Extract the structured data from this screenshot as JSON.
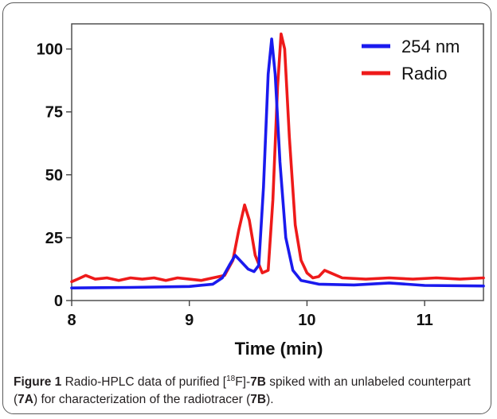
{
  "figure": {
    "label": "Figure 1",
    "caption_p1": " Radio-HPLC data of purified [",
    "caption_sup": "18",
    "caption_p2": "F]-",
    "caption_b1": "7B",
    "caption_p3": " spiked with an unlabeled counterpart (",
    "caption_b2": "7A",
    "caption_p4": ") for characterization of the radiotracer (",
    "caption_b3": "7B",
    "caption_p5": ")."
  },
  "chart_data": {
    "type": "line",
    "xlabel": "Time (min)",
    "ylabel": "",
    "xlim": [
      8,
      11.5
    ],
    "ylim": [
      0,
      110
    ],
    "x_ticks": [
      8,
      9,
      10,
      11
    ],
    "y_ticks": [
      0,
      25,
      50,
      75,
      100
    ],
    "grid": false,
    "legend": "top-right",
    "series": [
      {
        "name": "254 nm",
        "color": "#1a1aee",
        "points": [
          [
            8.0,
            5
          ],
          [
            8.5,
            5.2
          ],
          [
            9.0,
            5.6
          ],
          [
            9.2,
            6.5
          ],
          [
            9.28,
            9
          ],
          [
            9.34,
            14
          ],
          [
            9.39,
            18
          ],
          [
            9.44,
            15.5
          ],
          [
            9.5,
            12.5
          ],
          [
            9.55,
            11.5
          ],
          [
            9.59,
            14
          ],
          [
            9.63,
            45
          ],
          [
            9.67,
            90
          ],
          [
            9.7,
            104
          ],
          [
            9.73,
            90
          ],
          [
            9.77,
            55
          ],
          [
            9.82,
            25
          ],
          [
            9.88,
            12
          ],
          [
            9.95,
            8
          ],
          [
            10.1,
            6.5
          ],
          [
            10.4,
            6.2
          ],
          [
            10.7,
            7
          ],
          [
            11.0,
            6
          ],
          [
            11.5,
            5.8
          ]
        ]
      },
      {
        "name": "Radio",
        "color": "#ee1a1a",
        "points": [
          [
            8.0,
            7.5
          ],
          [
            8.05,
            8.5
          ],
          [
            8.12,
            10
          ],
          [
            8.2,
            8.5
          ],
          [
            8.3,
            9
          ],
          [
            8.4,
            8
          ],
          [
            8.5,
            9
          ],
          [
            8.6,
            8.5
          ],
          [
            8.7,
            9
          ],
          [
            8.8,
            8
          ],
          [
            8.9,
            9
          ],
          [
            9.0,
            8.5
          ],
          [
            9.1,
            8
          ],
          [
            9.2,
            9
          ],
          [
            9.3,
            10
          ],
          [
            9.37,
            16
          ],
          [
            9.42,
            28
          ],
          [
            9.47,
            38
          ],
          [
            9.51,
            32
          ],
          [
            9.56,
            18
          ],
          [
            9.62,
            11
          ],
          [
            9.67,
            12
          ],
          [
            9.71,
            40
          ],
          [
            9.75,
            85
          ],
          [
            9.78,
            106
          ],
          [
            9.81,
            100
          ],
          [
            9.85,
            65
          ],
          [
            9.9,
            30
          ],
          [
            9.95,
            16
          ],
          [
            10.0,
            11
          ],
          [
            10.05,
            9
          ],
          [
            10.1,
            9.5
          ],
          [
            10.15,
            12
          ],
          [
            10.2,
            11
          ],
          [
            10.3,
            9
          ],
          [
            10.5,
            8.5
          ],
          [
            10.7,
            9
          ],
          [
            10.9,
            8.5
          ],
          [
            11.1,
            9
          ],
          [
            11.3,
            8.5
          ],
          [
            11.5,
            9
          ]
        ]
      }
    ]
  }
}
